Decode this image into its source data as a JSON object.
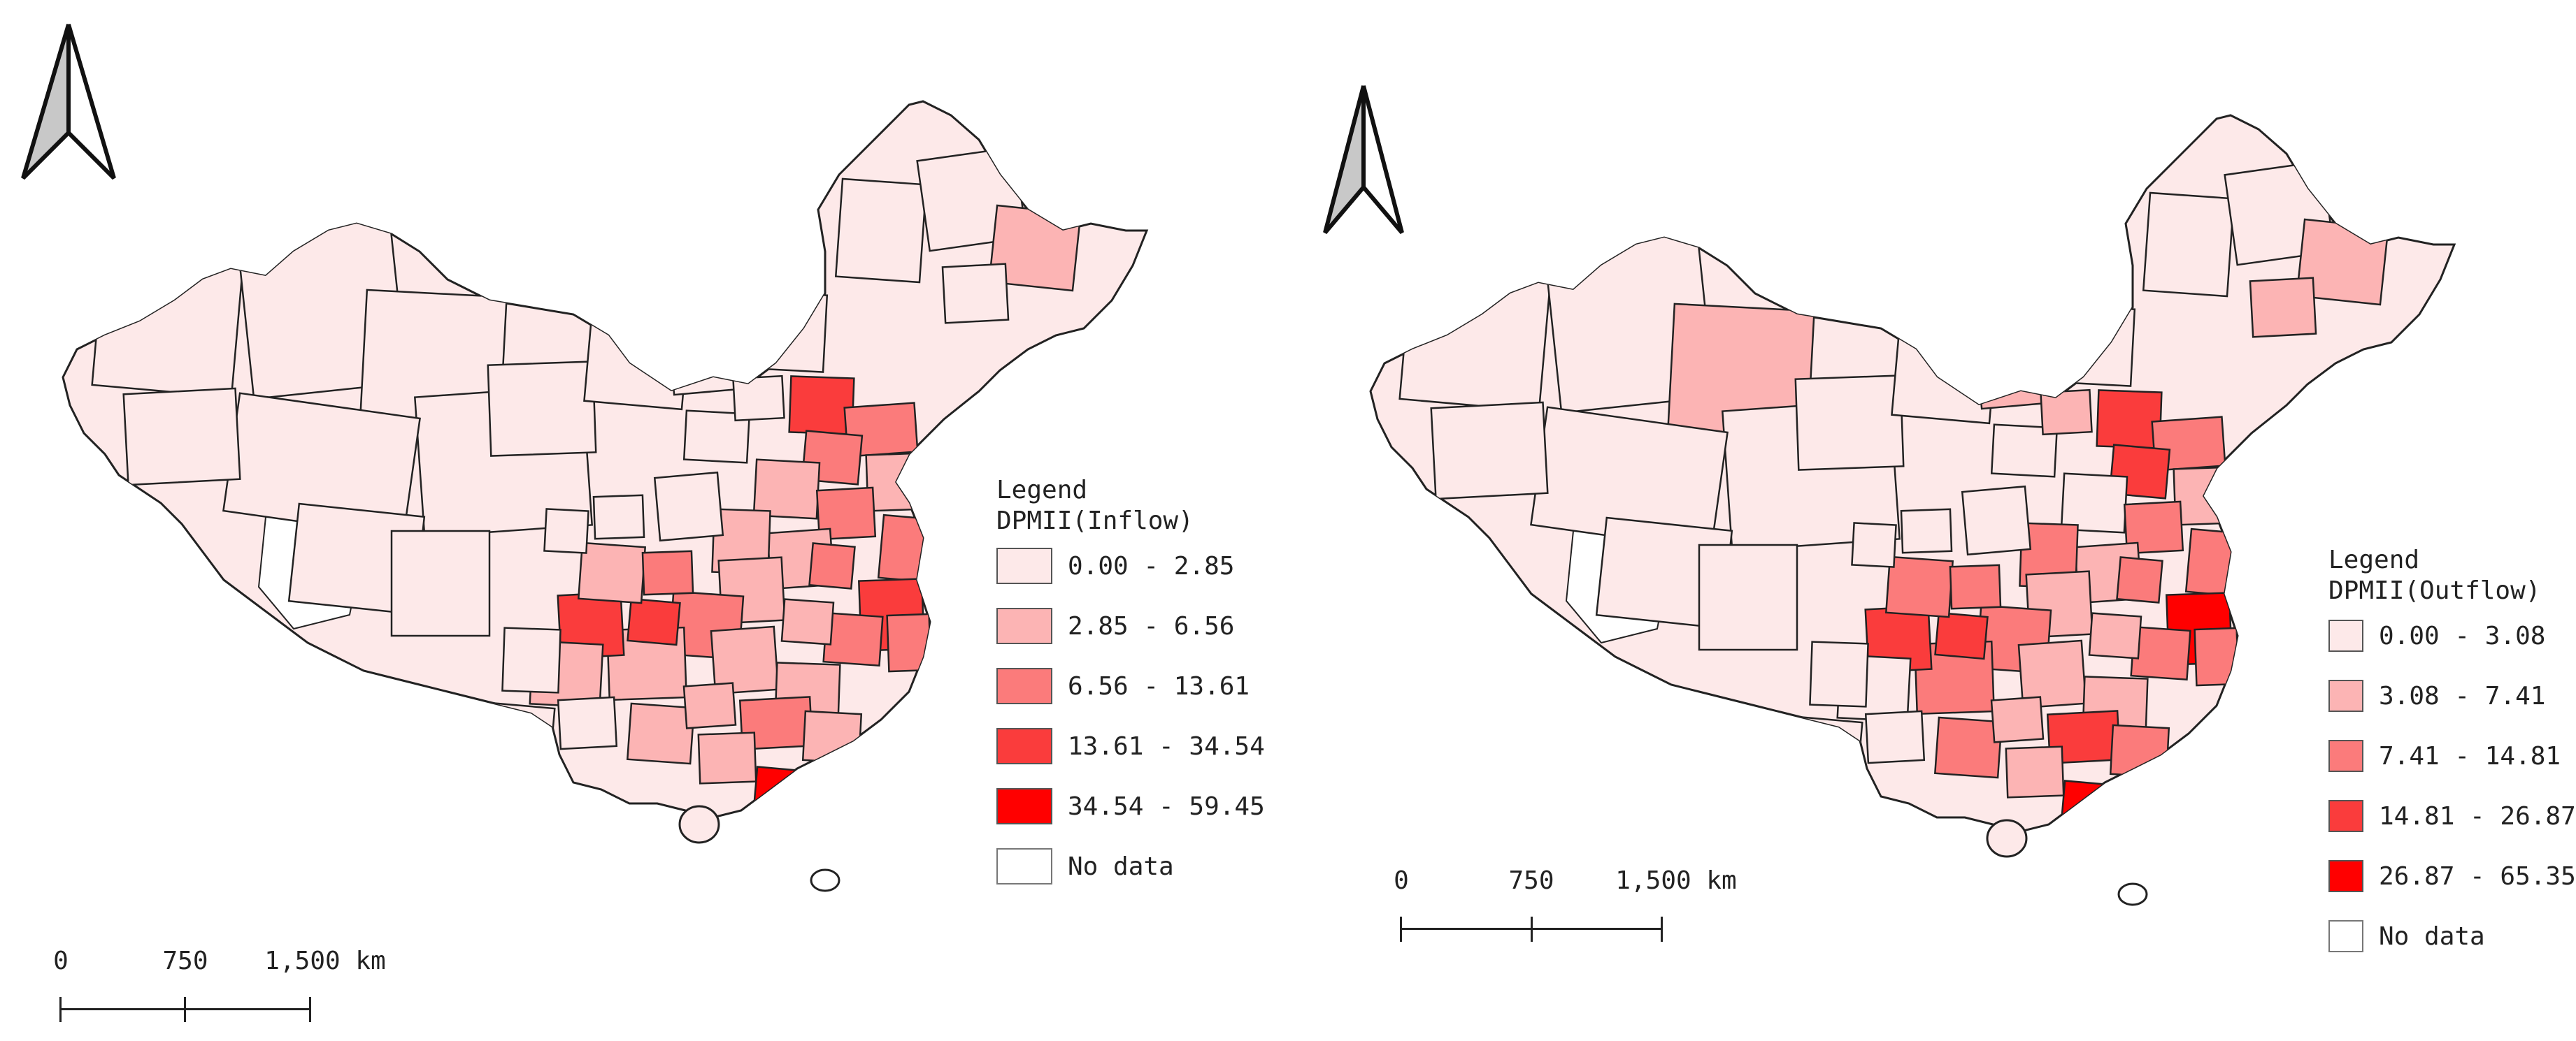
{
  "colors": {
    "class_1": "#fde9e9",
    "class_2": "#fcb4b4",
    "class_3": "#fb7b7b",
    "class_4": "#fa3c3c",
    "class_5": "#ff0000",
    "no_data": "#ffffff",
    "border": "#222222",
    "no_data_border": "#999999"
  },
  "left_map": {
    "legend_title": "Legend",
    "legend_subtitle": "DPMII(Inflow)",
    "classes": [
      "0.00 - 2.85",
      "2.85 - 6.56",
      "6.56 - 13.61",
      "13.61 - 34.54",
      "34.54 - 59.45",
      "No data"
    ],
    "scale_labels": [
      "0",
      "750",
      "1,500 km"
    ]
  },
  "right_map": {
    "legend_title": "Legend",
    "legend_subtitle": "DPMII(Outflow)",
    "classes": [
      "0.00 - 3.08",
      "3.08 - 7.41",
      "7.41 - 14.81",
      "14.81 - 26.87",
      "26.87 - 65.35",
      "No data"
    ],
    "scale_labels": [
      "0",
      "750",
      "1,500 km"
    ]
  },
  "icons": {
    "north_arrow": "north-arrow-icon"
  }
}
